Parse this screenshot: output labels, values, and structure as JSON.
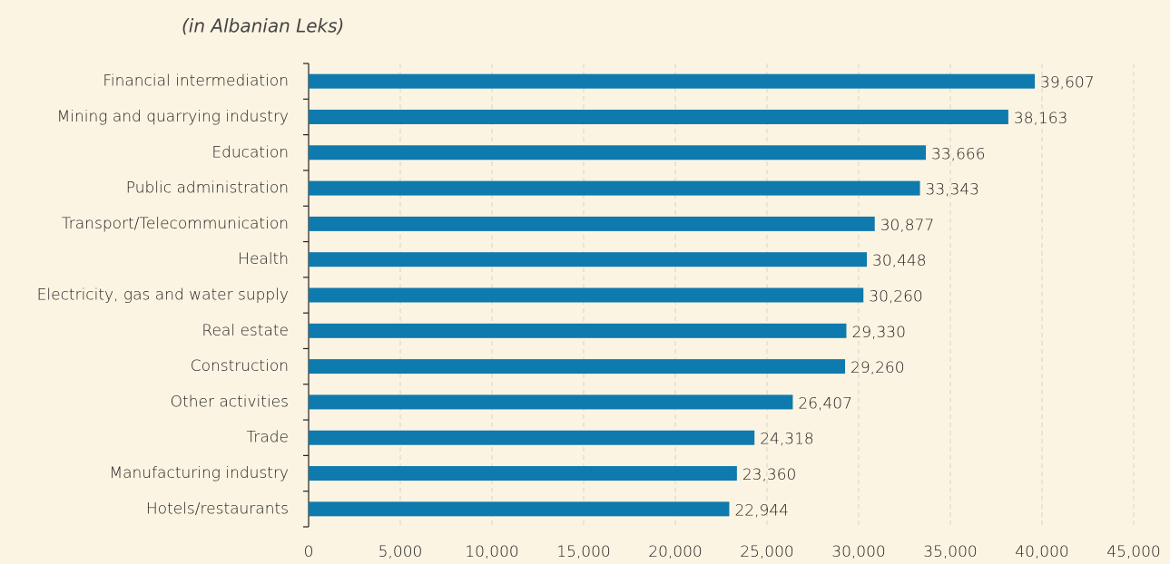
{
  "chart_data": {
    "type": "bar",
    "orientation": "horizontal",
    "subtitle": "(in Albanian Leks)",
    "categories": [
      "Financial intermediation",
      "Mining and quarrying industry",
      "Education",
      "Public administration",
      "Transport/Telecommunication",
      "Health",
      "Electricity, gas and water supply",
      "Real estate",
      "Construction",
      "Other activities",
      "Trade",
      "Manufacturing industry",
      "Hotels/restaurants"
    ],
    "values": [
      39607,
      38163,
      33666,
      33343,
      30877,
      30448,
      30260,
      29330,
      29260,
      26407,
      24318,
      23360,
      22944
    ],
    "value_labels": [
      "39,607",
      "38,163",
      "33,666",
      "33,343",
      "30,877",
      "30,448",
      "30,260",
      "29,330",
      "29,260",
      "26,407",
      "24,318",
      "23,360",
      "22,944"
    ],
    "color": "#0e7aad",
    "xlim": [
      0,
      45000
    ],
    "xticks": [
      0,
      {
        "value": 5000,
        "label": "5,000"
      },
      {
        "value": 10000,
        "label": "10,000"
      },
      {
        "value": 15000,
        "label": "15,000"
      },
      {
        "value": 20000,
        "label": "20,000"
      },
      {
        "value": 25000,
        "label": "25,000"
      },
      {
        "value": 30000,
        "label": "30,000"
      },
      {
        "value": 35000,
        "label": "35,000"
      },
      {
        "value": 40000,
        "label": "40,000"
      },
      {
        "value": 45000,
        "label": "45,000"
      }
    ],
    "grid": true
  }
}
